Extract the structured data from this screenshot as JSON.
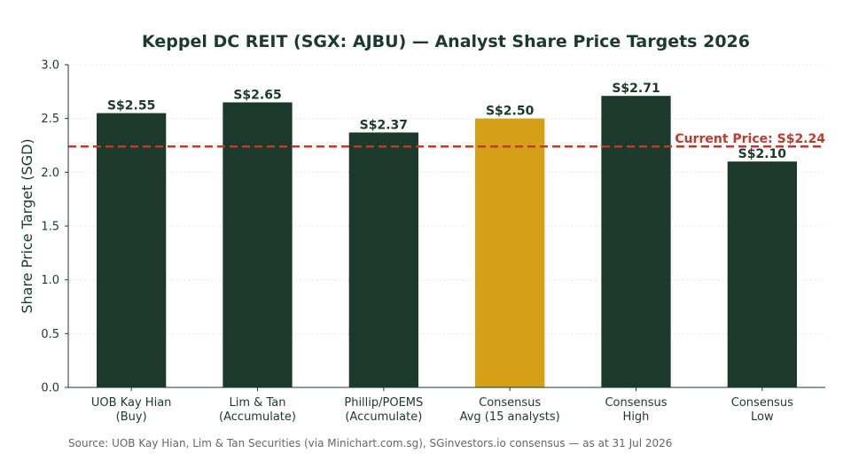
{
  "chart_data": {
    "type": "bar",
    "title": "Keppel DC REIT (SGX: AJBU) — Analyst Share Price Targets 2026",
    "ylabel": "Share Price Target (SGD)",
    "xlabel": "",
    "ylim": [
      0,
      3.0
    ],
    "yticks": [
      "0.0",
      "0.5",
      "1.0",
      "1.5",
      "2.0",
      "2.5",
      "3.0"
    ],
    "grid": true,
    "categories": [
      [
        "UOB Kay Hian",
        "(Buy)"
      ],
      [
        "Lim & Tan",
        "(Accumulate)"
      ],
      [
        "Phillip/POEMS",
        "(Accumulate)"
      ],
      [
        "Consensus",
        "Avg (15 analysts)"
      ],
      [
        "Consensus",
        "High"
      ],
      [
        "Consensus",
        "Low"
      ]
    ],
    "values": [
      2.55,
      2.65,
      2.37,
      2.5,
      2.71,
      2.1
    ],
    "value_labels": [
      "S$2.55",
      "S$2.65",
      "S$2.37",
      "S$2.50",
      "S$2.71",
      "S$2.10"
    ],
    "highlight_index": 3,
    "reference_line": {
      "value": 2.24,
      "label": "Current Price: S$2.24"
    },
    "colors": {
      "bar": "#1b3a2b",
      "highlight": "#d4a017",
      "reference": "#c0392b",
      "text": "#1b3a2b"
    }
  },
  "footer": {
    "source": "Source: UOB Kay Hian, Lim & Tan Securities (via Minichart.com.sg), SGinvestors.io consensus — as at 31 Jul 2026"
  }
}
